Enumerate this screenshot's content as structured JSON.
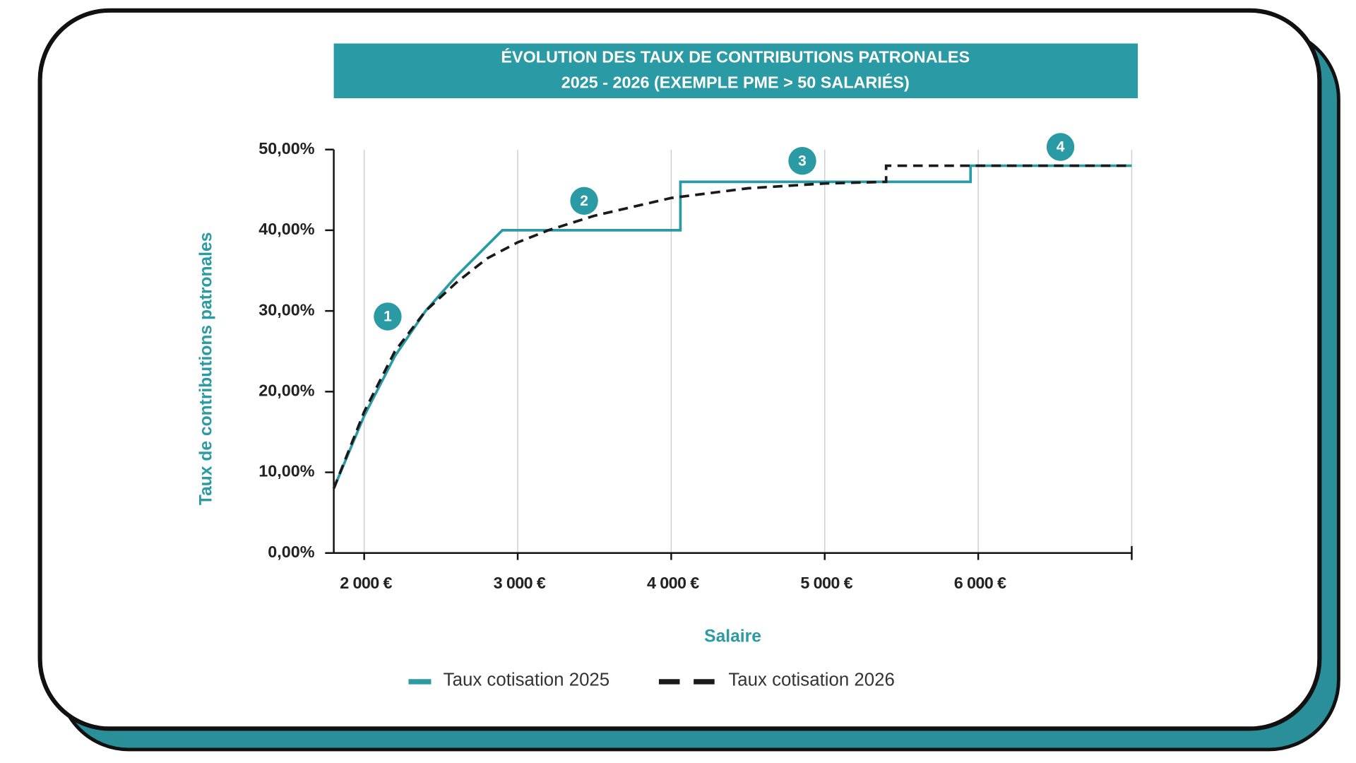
{
  "chart_data": {
    "type": "line",
    "title": "ÉVOLUTION DES TAUX DE CONTRIBUTIONS PATRONALES",
    "subtitle": "2025 - 2026 (EXEMPLE PME > 50 SALARIÉS)",
    "x_label": "Salaire",
    "y_label": "Taux de contributions patronales",
    "annotations": [
      "1",
      "2",
      "3",
      "4"
    ],
    "xlim": [
      1802,
      7000
    ],
    "ylim": [
      0,
      50
    ],
    "xticks": [
      {
        "value": 2000,
        "label": "2 000 €"
      },
      {
        "value": 3000,
        "label": "3 000 €"
      },
      {
        "value": 4000,
        "label": "4 000 €"
      },
      {
        "value": 5000,
        "label": "5 000 €"
      },
      {
        "value": 6000,
        "label": "6 000 €"
      }
    ],
    "yticks": [
      {
        "value": 0,
        "label": "0,00%"
      },
      {
        "value": 10,
        "label": "10,00%"
      },
      {
        "value": 20,
        "label": "20,00%"
      },
      {
        "value": 30,
        "label": "30,00%"
      },
      {
        "value": 40,
        "label": "40,00%"
      },
      {
        "value": 50,
        "label": "50,00%"
      }
    ],
    "grid": "x",
    "series": [
      {
        "name": "Taux cotisation 2025",
        "color": "#2a9aa5",
        "dash": false,
        "x": [
          1802,
          2000,
          2200,
          2400,
          2600,
          2900,
          4060,
          4060,
          5950,
          5950,
          7000
        ],
        "values": [
          8,
          17,
          24.4,
          30,
          34.3,
          40,
          40,
          46,
          46,
          48,
          48
        ]
      },
      {
        "name": "Taux cotisation 2026",
        "color": "#1a1a1a",
        "dash": true,
        "x": [
          1802,
          2000,
          2200,
          2400,
          2600,
          2800,
          3000,
          3200,
          3500,
          4000,
          4500,
          5000,
          5400,
          5400,
          7000
        ],
        "values": [
          8,
          17.5,
          25,
          30,
          33.5,
          36.5,
          38.5,
          40,
          41.8,
          44,
          45.2,
          45.8,
          46,
          48,
          48
        ]
      }
    ]
  }
}
